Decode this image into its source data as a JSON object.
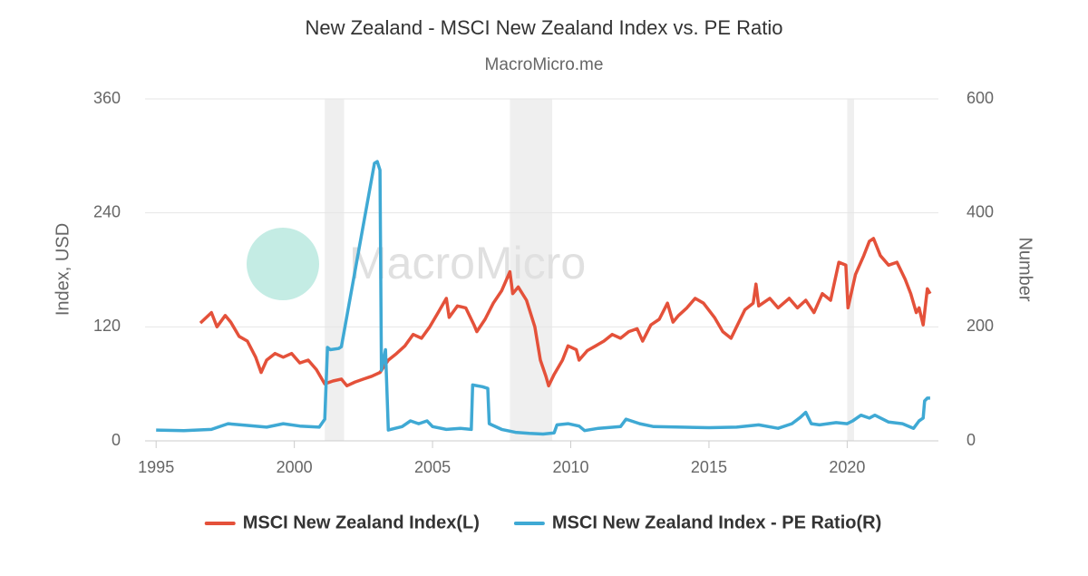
{
  "chart_data": {
    "type": "line",
    "title": "New Zealand - MSCI New Zealand Index vs. PE Ratio",
    "subtitle": "MacroMicro.me",
    "watermark": "MacroMicro",
    "ylabel": "Index, USD",
    "y2label": "Number",
    "xlim": [
      1994.6,
      2023.3
    ],
    "xticks": [
      1995,
      2000,
      2005,
      2010,
      2015,
      2020
    ],
    "ylim": [
      0,
      360
    ],
    "yticks": [
      0,
      120,
      240,
      360
    ],
    "y2lim": [
      0,
      600
    ],
    "y2ticks": [
      0,
      200,
      400,
      600
    ],
    "grid": true,
    "legend": "bottom",
    "shaded_periods": [
      [
        2001.1,
        2001.8
      ],
      [
        2007.8,
        2009.33
      ],
      [
        2020.0,
        2020.25
      ]
    ],
    "series": [
      {
        "name": "MSCI New Zealand Index(L)",
        "color": "#e4513a",
        "axis": "y",
        "x": [
          1996.6,
          1997.0,
          1997.2,
          1997.5,
          1997.7,
          1998.0,
          1998.3,
          1998.6,
          1998.8,
          1999.0,
          1999.3,
          1999.6,
          1999.9,
          2000.2,
          2000.5,
          2000.8,
          2001.1,
          2001.4,
          2001.7,
          2001.9,
          2002.2,
          2002.5,
          2002.8,
          2003.1,
          2003.4,
          2003.7,
          2004.0,
          2004.3,
          2004.6,
          2004.9,
          2005.2,
          2005.5,
          2005.6,
          2005.9,
          2006.2,
          2006.5,
          2006.6,
          2006.9,
          2007.2,
          2007.5,
          2007.8,
          2007.9,
          2008.1,
          2008.4,
          2008.7,
          2008.9,
          2009.1,
          2009.2,
          2009.4,
          2009.7,
          2009.9,
          2010.2,
          2010.3,
          2010.6,
          2010.9,
          2011.2,
          2011.5,
          2011.8,
          2012.1,
          2012.4,
          2012.6,
          2012.9,
          2013.2,
          2013.5,
          2013.7,
          2013.9,
          2014.2,
          2014.5,
          2014.8,
          2015.2,
          2015.5,
          2015.8,
          2016.0,
          2016.3,
          2016.6,
          2016.7,
          2016.8,
          2017.2,
          2017.5,
          2017.9,
          2018.2,
          2018.5,
          2018.8,
          2019.1,
          2019.4,
          2019.7,
          2019.95,
          2020.03,
          2020.3,
          2020.6,
          2020.8,
          2020.95,
          2021.2,
          2021.5,
          2021.8,
          2022.1,
          2022.3,
          2022.5,
          2022.6,
          2022.75,
          2022.9,
          2023.0
        ],
        "values": [
          124,
          135,
          120,
          132,
          125,
          110,
          105,
          88,
          72,
          85,
          92,
          88,
          92,
          82,
          85,
          75,
          60,
          63,
          65,
          58,
          62,
          65,
          68,
          72,
          85,
          92,
          100,
          112,
          108,
          120,
          135,
          150,
          130,
          142,
          140,
          122,
          115,
          128,
          145,
          158,
          178,
          155,
          162,
          148,
          120,
          85,
          68,
          58,
          70,
          85,
          100,
          96,
          85,
          95,
          100,
          105,
          112,
          108,
          115,
          118,
          105,
          122,
          128,
          145,
          125,
          132,
          140,
          150,
          145,
          130,
          115,
          108,
          120,
          138,
          145,
          165,
          142,
          150,
          140,
          150,
          140,
          148,
          135,
          155,
          148,
          188,
          185,
          140,
          175,
          195,
          210,
          213,
          195,
          185,
          188,
          170,
          155,
          135,
          140,
          122,
          160,
          155
        ]
      },
      {
        "name": "MSCI New Zealand Index - PE Ratio(R)",
        "color": "#3fa9d4",
        "axis": "y2",
        "x": [
          1995.0,
          1996.0,
          1997.0,
          1997.6,
          1998.3,
          1999.0,
          1999.6,
          2000.2,
          2000.9,
          2001.1,
          2001.2,
          2001.3,
          2001.6,
          2001.7,
          2002.9,
          2003.0,
          2003.1,
          2003.15,
          2003.3,
          2003.4,
          2003.9,
          2004.2,
          2004.5,
          2004.8,
          2005.0,
          2005.5,
          2006.0,
          2006.4,
          2006.45,
          2006.8,
          2007.0,
          2007.05,
          2007.5,
          2008.0,
          2008.5,
          2009.0,
          2009.4,
          2009.5,
          2009.9,
          2010.3,
          2010.5,
          2011.0,
          2011.8,
          2012.0,
          2012.5,
          2013.0,
          2014.0,
          2015.0,
          2016.0,
          2016.8,
          2017.5,
          2018.0,
          2018.3,
          2018.5,
          2018.7,
          2019.0,
          2019.6,
          2020.0,
          2020.2,
          2020.5,
          2020.8,
          2021.0,
          2021.5,
          2022.0,
          2022.4,
          2022.6,
          2022.75,
          2022.8,
          2022.9,
          2023.0
        ],
        "values": [
          19,
          18,
          20,
          30,
          27,
          24,
          30,
          26,
          24,
          38,
          164,
          160,
          162,
          165,
          487,
          490,
          475,
          124,
          160,
          19,
          25,
          35,
          30,
          35,
          25,
          20,
          22,
          20,
          98,
          95,
          92,
          30,
          20,
          15,
          13,
          12,
          14,
          28,
          30,
          26,
          18,
          22,
          25,
          38,
          30,
          25,
          24,
          23,
          24,
          28,
          22,
          30,
          41,
          50,
          30,
          28,
          32,
          30,
          35,
          45,
          40,
          45,
          33,
          30,
          22,
          35,
          40,
          70,
          75,
          75
        ]
      }
    ]
  }
}
